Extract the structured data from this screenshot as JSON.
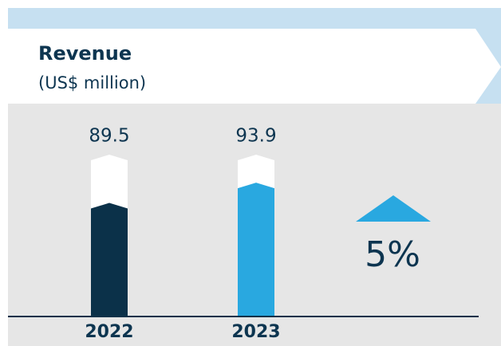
{
  "chart_data": {
    "type": "bar",
    "title": "Revenue",
    "subtitle": "(US$ million)",
    "categories": [
      "2022",
      "2023"
    ],
    "values": [
      89.5,
      93.9
    ],
    "colors": [
      "#0b3149",
      "#29a8e0"
    ],
    "ylim": [
      66,
      100
    ],
    "change_label": "5%"
  }
}
